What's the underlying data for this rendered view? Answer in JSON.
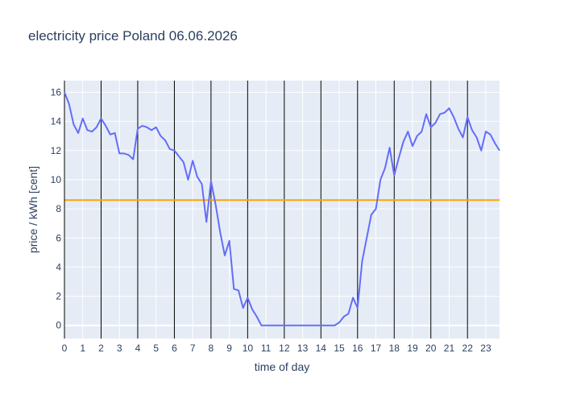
{
  "chart_data": {
    "type": "line",
    "title": "electricity price Poland 06.06.2026",
    "xlabel": "time of day",
    "ylabel": "price / kWh [cent]",
    "xlim": [
      0,
      23.75
    ],
    "ylim": [
      -0.9,
      16.8
    ],
    "x_ticks": [
      "0",
      "1",
      "2",
      "3",
      "4",
      "5",
      "6",
      "7",
      "8",
      "9",
      "10",
      "11",
      "12",
      "13",
      "14",
      "15",
      "16",
      "17",
      "18",
      "19",
      "20",
      "21",
      "22",
      "23"
    ],
    "y_ticks": [
      "0",
      "2",
      "4",
      "6",
      "8",
      "10",
      "12",
      "14",
      "16"
    ],
    "vertical_markers": [
      2,
      4,
      6,
      8,
      10,
      12,
      14,
      16,
      18,
      20,
      22
    ],
    "average_line": 8.6,
    "grid": true,
    "series": [
      {
        "color": "#636efa",
        "x": [
          0,
          0.25,
          0.5,
          0.75,
          1,
          1.25,
          1.5,
          1.75,
          2,
          2.25,
          2.5,
          2.75,
          3,
          3.25,
          3.5,
          3.75,
          4,
          4.25,
          4.5,
          4.75,
          5,
          5.25,
          5.5,
          5.75,
          6,
          6.25,
          6.5,
          6.75,
          7,
          7.25,
          7.5,
          7.75,
          8,
          8.25,
          8.5,
          8.75,
          9,
          9.25,
          9.5,
          9.75,
          10,
          10.25,
          10.5,
          10.75,
          11,
          11.25,
          11.5,
          11.75,
          12,
          12.25,
          12.5,
          12.75,
          13,
          13.25,
          13.5,
          13.75,
          14,
          14.25,
          14.5,
          14.75,
          15,
          15.25,
          15.5,
          15.75,
          16,
          16.25,
          16.5,
          16.75,
          17,
          17.25,
          17.5,
          17.75,
          18,
          18.25,
          18.5,
          18.75,
          19,
          19.25,
          19.5,
          19.75,
          20,
          20.25,
          20.5,
          20.75,
          21,
          21.25,
          21.5,
          21.75,
          22,
          22.25,
          22.5,
          22.75,
          23,
          23.25,
          23.5,
          23.75
        ],
        "values": [
          16.0,
          15.2,
          13.8,
          13.2,
          14.2,
          13.4,
          13.3,
          13.6,
          14.2,
          13.7,
          13.1,
          13.2,
          11.8,
          11.8,
          11.7,
          11.4,
          13.5,
          13.7,
          13.6,
          13.4,
          13.6,
          13.0,
          12.7,
          12.1,
          12.0,
          11.6,
          11.2,
          10.0,
          11.3,
          10.2,
          9.7,
          7.1,
          9.9,
          8.3,
          6.4,
          4.8,
          5.8,
          2.5,
          2.4,
          1.2,
          1.9,
          1.1,
          0.6,
          0.0,
          0.0,
          0.0,
          0.0,
          0.0,
          0.0,
          0.0,
          0.0,
          0.0,
          0.0,
          0.0,
          0.0,
          0.0,
          0.0,
          0.0,
          0.0,
          0.0,
          0.2,
          0.6,
          0.8,
          1.9,
          1.2,
          4.4,
          6.0,
          7.6,
          8.0,
          10.0,
          10.8,
          12.2,
          10.3,
          11.5,
          12.6,
          13.3,
          12.3,
          13.0,
          13.3,
          14.5,
          13.6,
          13.9,
          14.5,
          14.6,
          14.9,
          14.3,
          13.5,
          12.9,
          14.3,
          13.4,
          12.9,
          12.0,
          13.3,
          13.1,
          12.5,
          12.0
        ]
      }
    ]
  }
}
